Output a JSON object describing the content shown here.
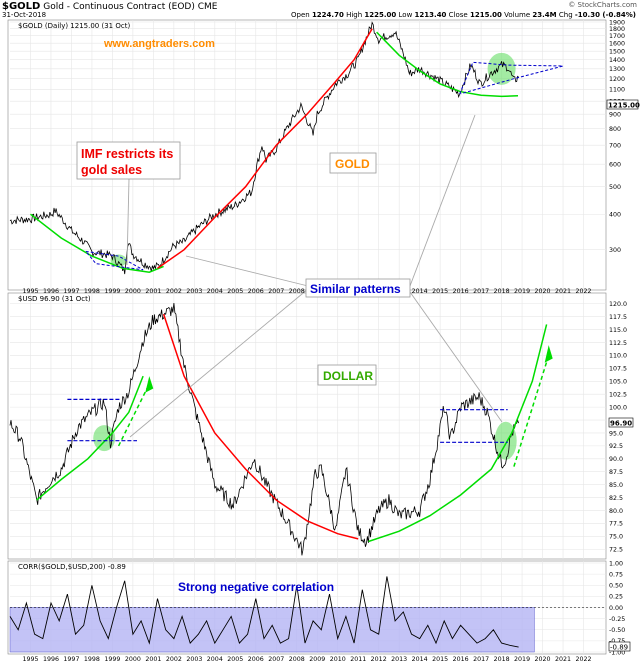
{
  "header": {
    "symbol": "$GOLD",
    "description": "Gold - Continuous Contract (EOD)",
    "exchange": "CME",
    "date": "31-Oct-2018",
    "open_label": "Open",
    "open": "1224.70",
    "high_label": "High",
    "high": "1225.00",
    "low_label": "Low",
    "low": "1213.40",
    "close_label": "Close",
    "close": "1215.00",
    "vol_label": "Volume",
    "vol": "23.4M",
    "chg_label": "Chg",
    "chg": "-10.30 (-0.84%)",
    "source": "© StockCharts.com"
  },
  "colors": {
    "price": "#000000",
    "uptrend": "#00dd00",
    "downtrend": "#ff0000",
    "pattern": "#0000cc",
    "highlight": "#66dd66",
    "corr_fill": "#b4b4f4",
    "annot_red": "#ee0000",
    "annot_orange": "#ff8c00",
    "annot_green": "#33aa00",
    "annot_blue": "#0000cc",
    "grid": "#e6e6e6"
  },
  "chart_data": [
    {
      "type": "line",
      "panel": "gold",
      "title": "$GOLD (Daily) 1215.00 (31 Oct)",
      "ylabel": "",
      "scale": "log",
      "ylim": [
        220,
        1900
      ],
      "ticks": [
        300,
        400,
        500,
        600,
        700,
        800,
        900,
        1000,
        1100,
        1200,
        1300,
        1400,
        1500,
        1600,
        1700,
        1800,
        1900
      ],
      "last_value_label": "1215.00",
      "x": [
        1994.0,
        1995.0,
        1996.0,
        1996.2,
        1997.0,
        1997.6,
        1998.0,
        1998.6,
        1999.0,
        1999.6,
        1999.75,
        2000.0,
        2000.5,
        2001.0,
        2001.3,
        2002.0,
        2002.5,
        2003.0,
        2004.0,
        2005.0,
        2005.8,
        2006.3,
        2006.5,
        2007.0,
        2008.2,
        2008.8,
        2009.0,
        2009.9,
        2010.5,
        2011.0,
        2011.68,
        2012.0,
        2012.8,
        2013.3,
        2013.5,
        2014.0,
        2015.0,
        2015.95,
        2016.5,
        2016.95,
        2017.5,
        2018.0,
        2018.3,
        2018.6,
        2018.83
      ],
      "y": [
        380,
        385,
        400,
        412,
        350,
        320,
        295,
        290,
        285,
        252,
        320,
        290,
        270,
        258,
        265,
        310,
        320,
        350,
        400,
        430,
        480,
        700,
        620,
        680,
        960,
        760,
        900,
        1150,
        1250,
        1400,
        1870,
        1650,
        1750,
        1400,
        1250,
        1300,
        1180,
        1060,
        1340,
        1150,
        1260,
        1340,
        1320,
        1180,
        1215
      ]
    },
    {
      "type": "line",
      "panel": "dollar",
      "title": "$USD 96.90 (31 Oct)",
      "ylabel": "",
      "ylim": [
        71,
        121.5
      ],
      "ticks": [
        72.5,
        75.0,
        77.5,
        80.0,
        82.5,
        85.0,
        87.5,
        90.0,
        92.5,
        95.0,
        97.5,
        100.0,
        102.5,
        105.0,
        107.5,
        110.0,
        112.5,
        115.0,
        117.5,
        120.0
      ],
      "last_value_label": "96.90",
      "x": [
        1994.0,
        1994.5,
        1995.3,
        1996.0,
        1996.5,
        1997.0,
        1997.3,
        1998.0,
        1998.6,
        1998.9,
        1999.3,
        1999.8,
        2000.5,
        2001.0,
        2001.5,
        2002.0,
        2002.5,
        2003.0,
        2004.0,
        2004.9,
        2005.9,
        2006.5,
        2007.5,
        2008.3,
        2008.9,
        2009.2,
        2009.9,
        2010.4,
        2011.0,
        2011.4,
        2012.0,
        2012.5,
        2013.0,
        2014.0,
        2014.5,
        2015.2,
        2015.5,
        2016.0,
        2016.9,
        2017.3,
        2017.7,
        2018.0,
        2018.2,
        2018.5,
        2018.83
      ],
      "y": [
        97,
        94,
        82,
        86,
        88,
        93,
        96,
        99,
        101,
        93,
        100,
        103,
        113,
        117,
        118,
        119,
        108,
        100,
        85,
        81,
        90,
        85,
        78,
        72,
        87,
        88,
        76,
        88,
        76,
        74,
        80,
        82,
        79,
        80,
        86,
        100,
        94,
        100,
        102,
        99,
        93,
        89,
        90,
        95,
        96.9
      ]
    },
    {
      "type": "area",
      "panel": "correlation",
      "title": "CORR($GOLD,$USD,200) -0.89",
      "ylim": [
        -1.0,
        1.0
      ],
      "ticks": [
        -1.0,
        -0.75,
        -0.5,
        -0.25,
        0.0,
        0.25,
        0.5,
        0.75,
        1.0
      ],
      "last_value_label": "-0.89",
      "x": [
        1994.0,
        1994.4,
        1994.8,
        1995.2,
        1995.6,
        1996.0,
        1996.4,
        1996.8,
        1997.2,
        1997.6,
        1998.0,
        1998.4,
        1998.8,
        1999.2,
        1999.6,
        2000.0,
        2000.4,
        2000.8,
        2001.2,
        2001.6,
        2002.0,
        2002.4,
        2002.8,
        2003.2,
        2003.6,
        2004.0,
        2004.4,
        2004.8,
        2005.2,
        2005.6,
        2006.0,
        2006.4,
        2006.8,
        2007.2,
        2007.6,
        2008.0,
        2008.4,
        2008.8,
        2009.2,
        2009.6,
        2010.0,
        2010.4,
        2010.8,
        2011.2,
        2011.6,
        2012.0,
        2012.4,
        2012.8,
        2013.2,
        2013.6,
        2014.0,
        2014.4,
        2014.8,
        2015.2,
        2015.6,
        2016.0,
        2016.4,
        2016.8,
        2017.2,
        2017.6,
        2018.0,
        2018.4,
        2018.83
      ],
      "y": [
        -0.2,
        -0.5,
        0.1,
        -0.6,
        -0.7,
        0.1,
        -0.3,
        0.3,
        -0.6,
        -0.4,
        0.5,
        -0.3,
        -0.7,
        0.0,
        0.6,
        -0.6,
        -0.3,
        -0.8,
        0.2,
        -0.5,
        -0.7,
        -0.2,
        -0.8,
        -0.6,
        -0.3,
        -0.8,
        -0.5,
        -0.2,
        -0.8,
        -0.6,
        0.2,
        -0.7,
        -0.4,
        -0.8,
        -0.7,
        0.5,
        -0.8,
        -0.3,
        -0.5,
        0.3,
        -0.7,
        -0.2,
        -0.8,
        0.4,
        -0.5,
        -0.6,
        0.7,
        -0.3,
        -0.1,
        -0.6,
        -0.7,
        -0.4,
        -0.8,
        -0.3,
        -0.7,
        -0.4,
        -0.6,
        -0.8,
        -0.7,
        -0.5,
        -0.8,
        -0.85,
        -0.89
      ]
    }
  ],
  "x_axis": {
    "years": [
      "1995",
      "1996",
      "1997",
      "1998",
      "1999",
      "2000",
      "2001",
      "2002",
      "2003",
      "2004",
      "2005",
      "2006",
      "2007",
      "2008",
      "2009",
      "2010",
      "2011",
      "2012",
      "2013",
      "2014",
      "2015",
      "2016",
      "2017",
      "2018",
      "2019",
      "2020",
      "2021",
      "2022"
    ]
  },
  "annotations": {
    "website": "www.angtraders.com",
    "imf_line1": "IMF restricts its",
    "imf_line2": "gold sales",
    "gold_label": "GOLD",
    "dollar_label": "DOLLAR",
    "similar": "Similar patterns",
    "corr_text": "Strong negative correlation"
  }
}
